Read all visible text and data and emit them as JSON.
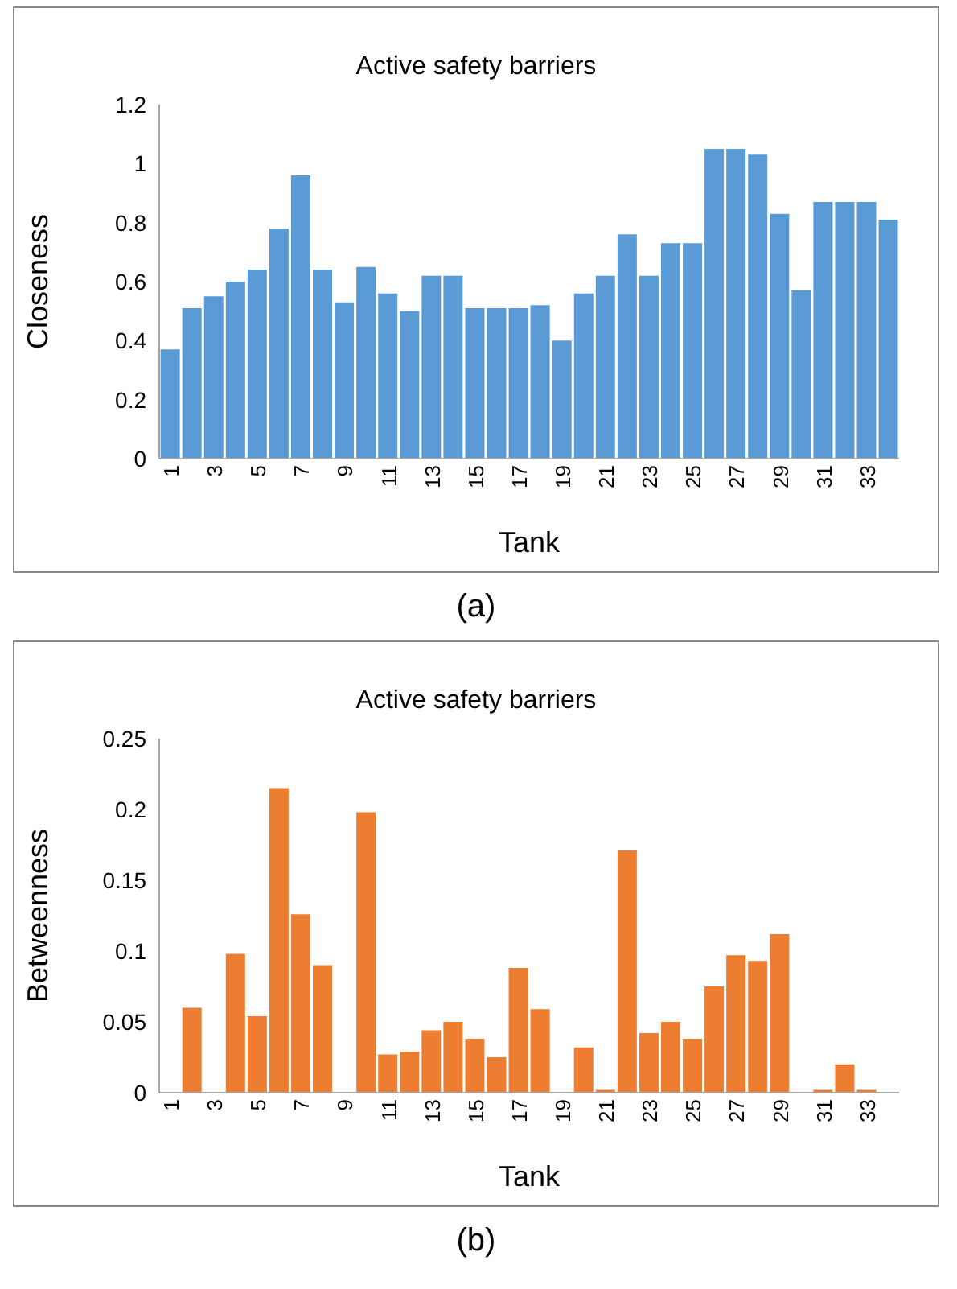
{
  "chart_data": [
    {
      "type": "bar",
      "title": "Active safety barriers",
      "xlabel": "Tank",
      "ylabel": "Closeness",
      "categories": [
        "1",
        null,
        "3",
        null,
        "5",
        null,
        "7",
        null,
        "9",
        null,
        "11",
        null,
        "13",
        null,
        "15",
        null,
        "17",
        null,
        "19",
        null,
        "21",
        null,
        "23",
        null,
        "25",
        null,
        "27",
        null,
        "29",
        null,
        "31",
        null,
        "33",
        null
      ],
      "values": [
        0.37,
        0.51,
        0.55,
        0.6,
        0.64,
        0.78,
        0.96,
        0.64,
        0.53,
        0.65,
        0.56,
        0.5,
        0.62,
        0.62,
        0.51,
        0.51,
        0.51,
        0.52,
        0.4,
        0.56,
        0.62,
        0.76,
        0.62,
        0.73,
        0.73,
        1.05,
        1.05,
        1.03,
        0.83,
        0.57,
        0.87,
        0.87,
        0.87,
        0.81
      ],
      "color": "#5b9bd5",
      "ylim": [
        0,
        1.2
      ],
      "yticks": [
        0,
        0.2,
        0.4,
        0.6,
        0.8,
        1,
        1.2
      ],
      "annotations": [
        "(a)"
      ]
    },
    {
      "type": "bar",
      "title": "Active safety barriers",
      "xlabel": "Tank",
      "ylabel": "Betweenness",
      "categories": [
        "1",
        null,
        "3",
        null,
        "5",
        null,
        "7",
        null,
        "9",
        null,
        "11",
        null,
        "13",
        null,
        "15",
        null,
        "17",
        null,
        "19",
        null,
        "21",
        null,
        "23",
        null,
        "25",
        null,
        "27",
        null,
        "29",
        null,
        "31",
        null,
        "33",
        null
      ],
      "values": [
        0,
        0.06,
        0,
        0.098,
        0.054,
        0.215,
        0.126,
        0.09,
        0,
        0.198,
        0.027,
        0.029,
        0.044,
        0.05,
        0.038,
        0.025,
        0.088,
        0.059,
        0,
        0.032,
        0.002,
        0.171,
        0.042,
        0.05,
        0.038,
        0.075,
        0.097,
        0.093,
        0.112,
        0,
        0.002,
        0.02,
        0.002,
        0
      ],
      "color": "#ed7d31",
      "ylim": [
        0,
        0.25
      ],
      "yticks": [
        0,
        0.05,
        0.1,
        0.15,
        0.2,
        0.25
      ],
      "annotations": [
        "(b)"
      ]
    }
  ]
}
